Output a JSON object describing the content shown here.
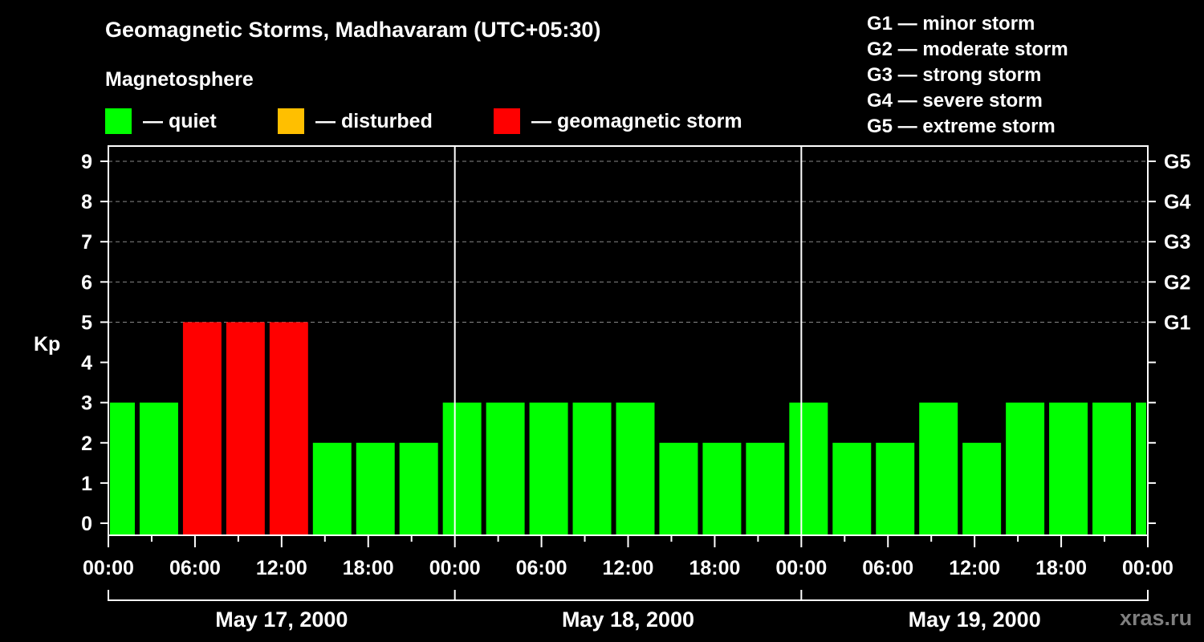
{
  "header": {
    "title": "Geomagnetic Storms, Madhavaram (UTC+05:30)",
    "subtitle": "Magnetosphere"
  },
  "legend": [
    {
      "label": "— quiet",
      "color": "#00ff00"
    },
    {
      "label": "— disturbed",
      "color": "#ffbf00"
    },
    {
      "label": "— geomagnetic storm",
      "color": "#ff0000"
    }
  ],
  "g_scale": [
    "G1 — minor storm",
    "G2 — moderate storm",
    "G3 — strong storm",
    "G4 — severe storm",
    "G5 — extreme storm"
  ],
  "watermark": "xras.ru",
  "chart_data": {
    "type": "bar",
    "title": "Geomagnetic Storms, Madhavaram (UTC+05:30)",
    "ylabel": "Kp",
    "xlabel": "",
    "ylim": [
      0,
      9
    ],
    "yticks": [
      0,
      1,
      2,
      3,
      4,
      5,
      6,
      7,
      8,
      9
    ],
    "right_axis_labels": [
      {
        "kp": 5,
        "label": "G1"
      },
      {
        "kp": 6,
        "label": "G2"
      },
      {
        "kp": 7,
        "label": "G3"
      },
      {
        "kp": 8,
        "label": "G4"
      },
      {
        "kp": 9,
        "label": "G5"
      }
    ],
    "grid": "dashed horizontal at Kp 5-9",
    "x_range_hours": [
      0,
      72
    ],
    "xtick_labels": [
      "00:00",
      "06:00",
      "12:00",
      "18:00",
      "00:00",
      "06:00",
      "12:00",
      "18:00",
      "00:00",
      "06:00",
      "12:00",
      "18:00",
      "00:00"
    ],
    "days": [
      "May 17, 2000",
      "May 18, 2000",
      "May 19, 2000"
    ],
    "bar_interval_hours": 3,
    "bars": [
      {
        "start": 0,
        "end": 2,
        "kp": 3,
        "level": "quiet"
      },
      {
        "start": 2,
        "end": 5,
        "kp": 3,
        "level": "quiet"
      },
      {
        "start": 5,
        "end": 8,
        "kp": 5,
        "level": "storm"
      },
      {
        "start": 8,
        "end": 11,
        "kp": 5,
        "level": "storm"
      },
      {
        "start": 11,
        "end": 14,
        "kp": 5,
        "level": "storm"
      },
      {
        "start": 14,
        "end": 17,
        "kp": 2,
        "level": "quiet"
      },
      {
        "start": 17,
        "end": 20,
        "kp": 2,
        "level": "quiet"
      },
      {
        "start": 20,
        "end": 23,
        "kp": 2,
        "level": "quiet"
      },
      {
        "start": 23,
        "end": 26,
        "kp": 3,
        "level": "quiet"
      },
      {
        "start": 26,
        "end": 29,
        "kp": 3,
        "level": "quiet"
      },
      {
        "start": 29,
        "end": 32,
        "kp": 3,
        "level": "quiet"
      },
      {
        "start": 32,
        "end": 35,
        "kp": 3,
        "level": "quiet"
      },
      {
        "start": 35,
        "end": 38,
        "kp": 3,
        "level": "quiet"
      },
      {
        "start": 38,
        "end": 41,
        "kp": 2,
        "level": "quiet"
      },
      {
        "start": 41,
        "end": 44,
        "kp": 2,
        "level": "quiet"
      },
      {
        "start": 44,
        "end": 47,
        "kp": 2,
        "level": "quiet"
      },
      {
        "start": 47,
        "end": 50,
        "kp": 3,
        "level": "quiet"
      },
      {
        "start": 50,
        "end": 53,
        "kp": 2,
        "level": "quiet"
      },
      {
        "start": 53,
        "end": 56,
        "kp": 2,
        "level": "quiet"
      },
      {
        "start": 56,
        "end": 59,
        "kp": 3,
        "level": "quiet"
      },
      {
        "start": 59,
        "end": 62,
        "kp": 2,
        "level": "quiet"
      },
      {
        "start": 62,
        "end": 65,
        "kp": 3,
        "level": "quiet"
      },
      {
        "start": 65,
        "end": 68,
        "kp": 3,
        "level": "quiet"
      },
      {
        "start": 68,
        "end": 71,
        "kp": 3,
        "level": "quiet"
      },
      {
        "start": 71,
        "end": 72,
        "kp": 3,
        "level": "quiet"
      }
    ],
    "colors": {
      "quiet": "#00ff00",
      "disturbed": "#ffbf00",
      "storm": "#ff0000"
    }
  }
}
